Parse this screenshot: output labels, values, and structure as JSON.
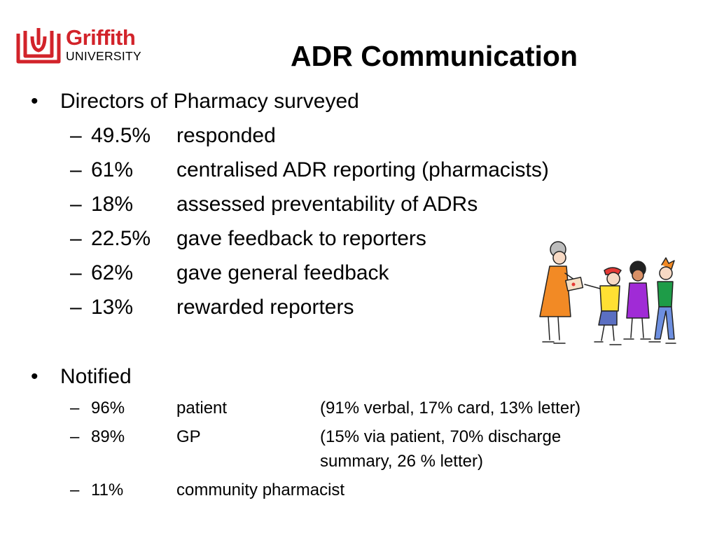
{
  "logo": {
    "word1": "Griffith",
    "word2": "UNIVERSITY",
    "brand_color": "#d2232a"
  },
  "slide": {
    "title": "ADR Communication",
    "bullet_glyph": "•",
    "dash_glyph": "–",
    "bullets": [
      {
        "text": "Directors of Pharmacy surveyed",
        "items": [
          {
            "pct": "49.5%",
            "label": "responded"
          },
          {
            "pct": "61%",
            "label": "centralised ADR reporting (pharmacists)"
          },
          {
            "pct": "18%",
            "label": "assessed preventability of ADRs"
          },
          {
            "pct": "22.5%",
            "label": "gave feedback to reporters"
          },
          {
            "pct": "62%",
            "label": "gave general feedback"
          },
          {
            "pct": "13%",
            "label": "rewarded reporters"
          }
        ]
      },
      {
        "text": "Notified",
        "items": [
          {
            "pct": "96%",
            "label": "patient",
            "detail": "(91% verbal, 17% card, 13% letter)"
          },
          {
            "pct": "89%",
            "label": "GP",
            "detail_line1": "(15% via patient, 70% discharge",
            "detail_line2": "summary, 26 % letter)"
          },
          {
            "pct": "11%",
            "label": "community pharmacist"
          }
        ]
      }
    ]
  },
  "clipart": {
    "icon": "woman-giving-card-to-children-illustration"
  }
}
